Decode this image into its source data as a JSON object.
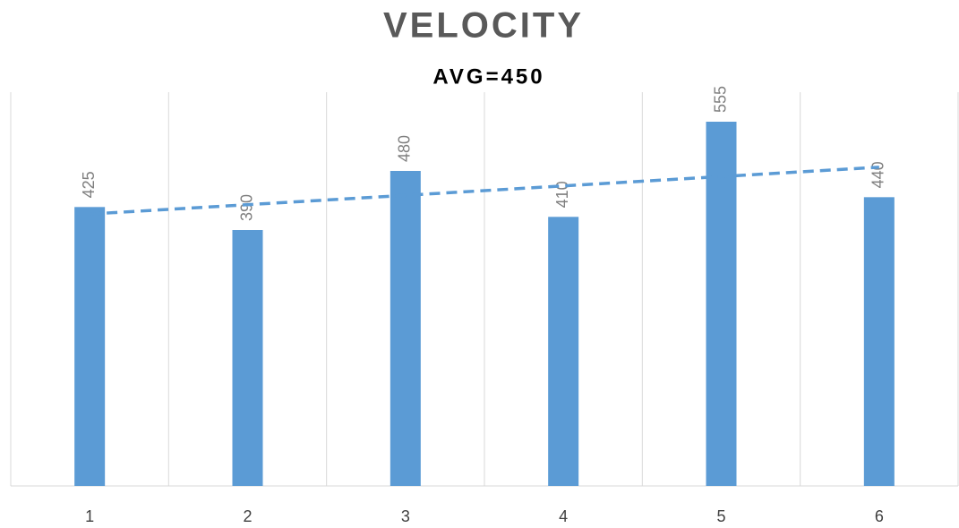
{
  "chart_data": {
    "type": "bar",
    "title": "VELOCITY",
    "subtitle": "AVG=450",
    "categories": [
      "1",
      "2",
      "3",
      "4",
      "5",
      "6"
    ],
    "values": [
      425,
      390,
      480,
      410,
      555,
      440
    ],
    "color": "#5b9bd5",
    "ylim": [
      0,
      600
    ],
    "trendline": "linear",
    "data_labels": true
  }
}
